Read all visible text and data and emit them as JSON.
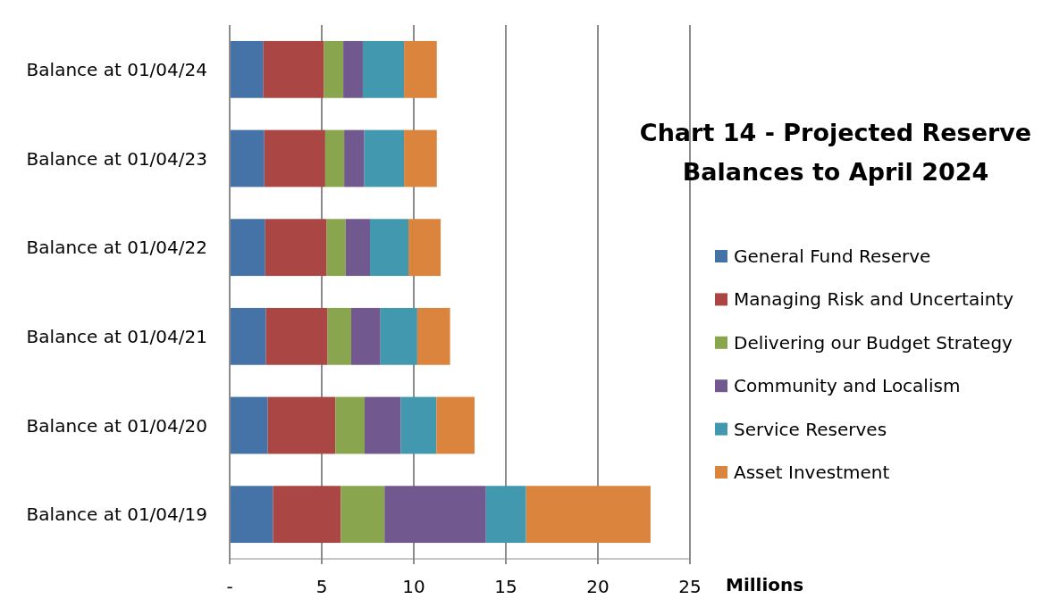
{
  "chart_data": {
    "type": "bar",
    "orientation": "horizontal",
    "stacked": true,
    "title": "Chart 14 - Projected Reserve Balances to April 2024",
    "xlabel": "Millions",
    "categories": [
      "Balance at 01/04/24",
      "Balance at 01/04/23",
      "Balance at 01/04/22",
      "Balance at 01/04/21",
      "Balance at 01/04/20",
      "Balance at 01/04/19"
    ],
    "series": [
      {
        "name": "General Fund Reserve",
        "color": "#4572a7",
        "values": [
          1.83,
          1.88,
          1.93,
          1.97,
          2.07,
          2.35
        ]
      },
      {
        "name": "Managing Risk and Uncertainty",
        "color": "#aa4643",
        "values": [
          3.29,
          3.31,
          3.34,
          3.35,
          3.67,
          3.69
        ]
      },
      {
        "name": "Delivering our Budget Strategy",
        "color": "#89a54e",
        "values": [
          1.05,
          1.03,
          1.03,
          1.28,
          1.59,
          2.37
        ]
      },
      {
        "name": "Community and Localism",
        "color": "#71588f",
        "values": [
          1.06,
          1.09,
          1.32,
          1.59,
          1.97,
          5.51
        ]
      },
      {
        "name": "Service Reserves",
        "color": "#4198af",
        "values": [
          2.24,
          2.16,
          2.09,
          2.0,
          1.93,
          2.18
        ]
      },
      {
        "name": "Asset Investment",
        "color": "#db843d",
        "values": [
          1.78,
          1.78,
          1.75,
          1.78,
          2.07,
          6.76
        ]
      }
    ],
    "xlim": [
      0,
      25
    ],
    "xticks": [
      {
        "value": 0,
        "label": "-"
      },
      5,
      10,
      15,
      20,
      25
    ],
    "grid": "x",
    "legend": "right"
  }
}
